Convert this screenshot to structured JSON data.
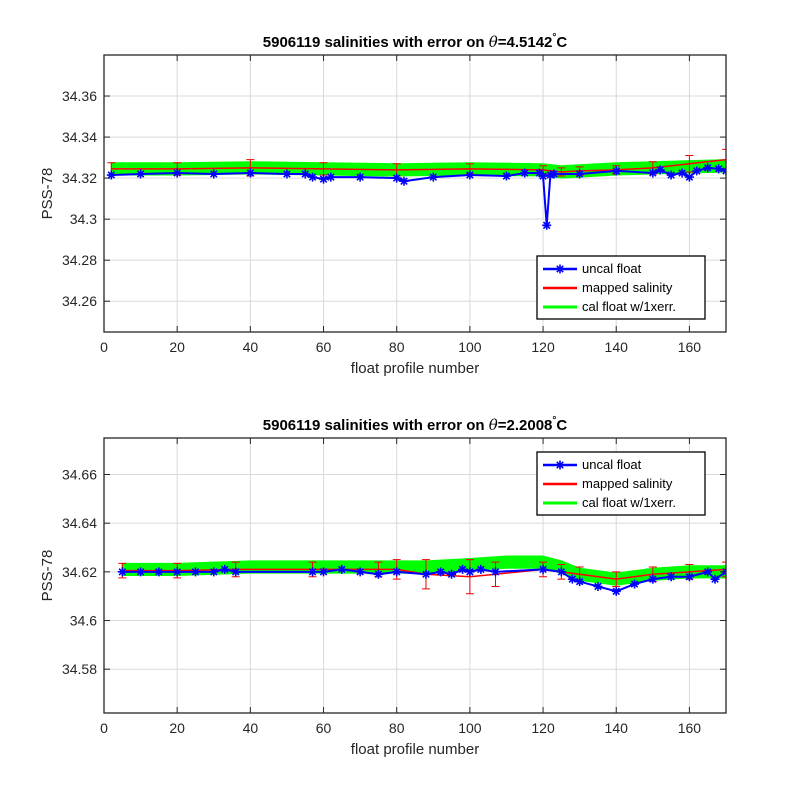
{
  "colors": {
    "uncal": "#0000ff",
    "mapped": "#ff0000",
    "errbar": "#ee0000",
    "cal": "#00ff00",
    "grid": "#d9d9d9",
    "axis": "#262626"
  },
  "chart_data": [
    {
      "type": "line",
      "title_prefix": "5906119 salinities with error on ",
      "title_theta": "θ",
      "title_value": "=4.5142",
      "title_degree": "°",
      "title_unit": "C",
      "xlabel": "float profile number",
      "ylabel": "PSS-78",
      "xlim": [
        0,
        170
      ],
      "ylim": [
        34.245,
        34.38
      ],
      "xticks": [
        0,
        20,
        40,
        60,
        80,
        100,
        120,
        140,
        160
      ],
      "yticks": [
        34.26,
        34.28,
        34.3,
        34.32,
        34.34,
        34.36
      ],
      "ytick_labels": [
        "34.26",
        "34.28",
        "34.3",
        "34.32",
        "34.34",
        "34.36"
      ],
      "grid": true,
      "legend_position": "bottom-right",
      "series": [
        {
          "name": "uncal float",
          "x": [
            2,
            10,
            20,
            30,
            40,
            50,
            55,
            57,
            60,
            62,
            70,
            80,
            82,
            90,
            100,
            110,
            115,
            119,
            120,
            121,
            122,
            123,
            130,
            140,
            150,
            152,
            155,
            158,
            160,
            162,
            165,
            168,
            170
          ],
          "y": [
            34.3215,
            34.322,
            34.3225,
            34.322,
            34.3225,
            34.322,
            34.322,
            34.3205,
            34.3195,
            34.3205,
            34.3205,
            34.32,
            34.3185,
            34.3205,
            34.3215,
            34.321,
            34.3225,
            34.3225,
            34.321,
            34.297,
            34.3215,
            34.322,
            34.322,
            34.3235,
            34.3225,
            34.324,
            34.3215,
            34.3225,
            34.3205,
            34.3235,
            34.325,
            34.3245,
            34.3235
          ]
        },
        {
          "name": "mapped salinity",
          "x": [
            2,
            20,
            40,
            60,
            80,
            100,
            120,
            125,
            130,
            140,
            150,
            160,
            170
          ],
          "y": [
            34.3245,
            34.3245,
            34.325,
            34.3245,
            34.324,
            34.3245,
            34.324,
            34.323,
            34.3235,
            34.324,
            34.325,
            34.327,
            34.329
          ],
          "err": [
            0.003,
            0.003,
            0.004,
            0.003,
            0.003,
            0.0025,
            0.002,
            0.002,
            0.002,
            0.002,
            0.003,
            0.004,
            0.005
          ]
        },
        {
          "name": "cal float w/1xerr.",
          "x": [
            2,
            20,
            40,
            60,
            80,
            100,
            120,
            125,
            130,
            140,
            150,
            160,
            170
          ],
          "y": [
            34.3245,
            34.3245,
            34.325,
            34.3245,
            34.324,
            34.3245,
            34.324,
            34.323,
            34.3235,
            34.3245,
            34.325,
            34.3255,
            34.326
          ],
          "err": [
            0.003,
            0.003,
            0.003,
            0.003,
            0.003,
            0.003,
            0.003,
            0.003,
            0.003,
            0.003,
            0.003,
            0.003,
            0.003
          ]
        }
      ]
    },
    {
      "type": "line",
      "title_prefix": "5906119 salinities with error on ",
      "title_theta": "θ",
      "title_value": "=2.2008",
      "title_degree": "°",
      "title_unit": "C",
      "xlabel": "float profile number",
      "ylabel": "PSS-78",
      "xlim": [
        0,
        170
      ],
      "ylim": [
        34.562,
        34.675
      ],
      "xticks": [
        0,
        20,
        40,
        60,
        80,
        100,
        120,
        140,
        160
      ],
      "yticks": [
        34.58,
        34.6,
        34.62,
        34.64,
        34.66
      ],
      "ytick_labels": [
        "34.58",
        "34.6",
        "34.62",
        "34.64",
        "34.66"
      ],
      "grid": true,
      "legend_position": "top-right",
      "series": [
        {
          "name": "uncal float",
          "x": [
            5,
            10,
            15,
            20,
            25,
            30,
            33,
            36,
            57,
            60,
            65,
            70,
            75,
            80,
            88,
            92,
            95,
            98,
            100,
            103,
            107,
            120,
            125,
            128,
            130,
            135,
            140,
            145,
            150,
            155,
            160,
            165,
            167,
            170
          ],
          "y": [
            34.62,
            34.62,
            34.62,
            34.62,
            34.62,
            34.62,
            34.621,
            34.62,
            34.62,
            34.62,
            34.621,
            34.62,
            34.619,
            34.62,
            34.619,
            34.62,
            34.619,
            34.621,
            34.62,
            34.621,
            34.62,
            34.621,
            34.62,
            34.617,
            34.616,
            34.614,
            34.612,
            34.615,
            34.617,
            34.618,
            34.618,
            34.62,
            34.617,
            34.62
          ]
        },
        {
          "name": "mapped salinity",
          "x": [
            5,
            20,
            36,
            57,
            75,
            80,
            88,
            100,
            107,
            120,
            125,
            130,
            140,
            150,
            160,
            170
          ],
          "y": [
            34.6205,
            34.6205,
            34.621,
            34.621,
            34.621,
            34.621,
            34.619,
            34.618,
            34.619,
            34.621,
            34.62,
            34.619,
            34.617,
            34.619,
            34.62,
            34.621
          ],
          "err": [
            0.003,
            0.003,
            0.003,
            0.003,
            0.003,
            0.004,
            0.006,
            0.007,
            0.005,
            0.003,
            0.003,
            0.003,
            0.003,
            0.003,
            0.003,
            0.003
          ]
        },
        {
          "name": "cal float w/1xerr.",
          "x": [
            5,
            20,
            40,
            60,
            80,
            88,
            100,
            110,
            120,
            125,
            130,
            140,
            150,
            160,
            170
          ],
          "y": [
            34.621,
            34.621,
            34.622,
            34.622,
            34.622,
            34.622,
            34.623,
            34.624,
            34.624,
            34.622,
            34.619,
            34.617,
            34.619,
            34.62,
            34.62
          ],
          "err": [
            0.0025,
            0.0025,
            0.0025,
            0.0025,
            0.0025,
            0.0025,
            0.0025,
            0.0025,
            0.0025,
            0.0025,
            0.0025,
            0.0025,
            0.0025,
            0.0025,
            0.0025
          ]
        }
      ]
    }
  ]
}
